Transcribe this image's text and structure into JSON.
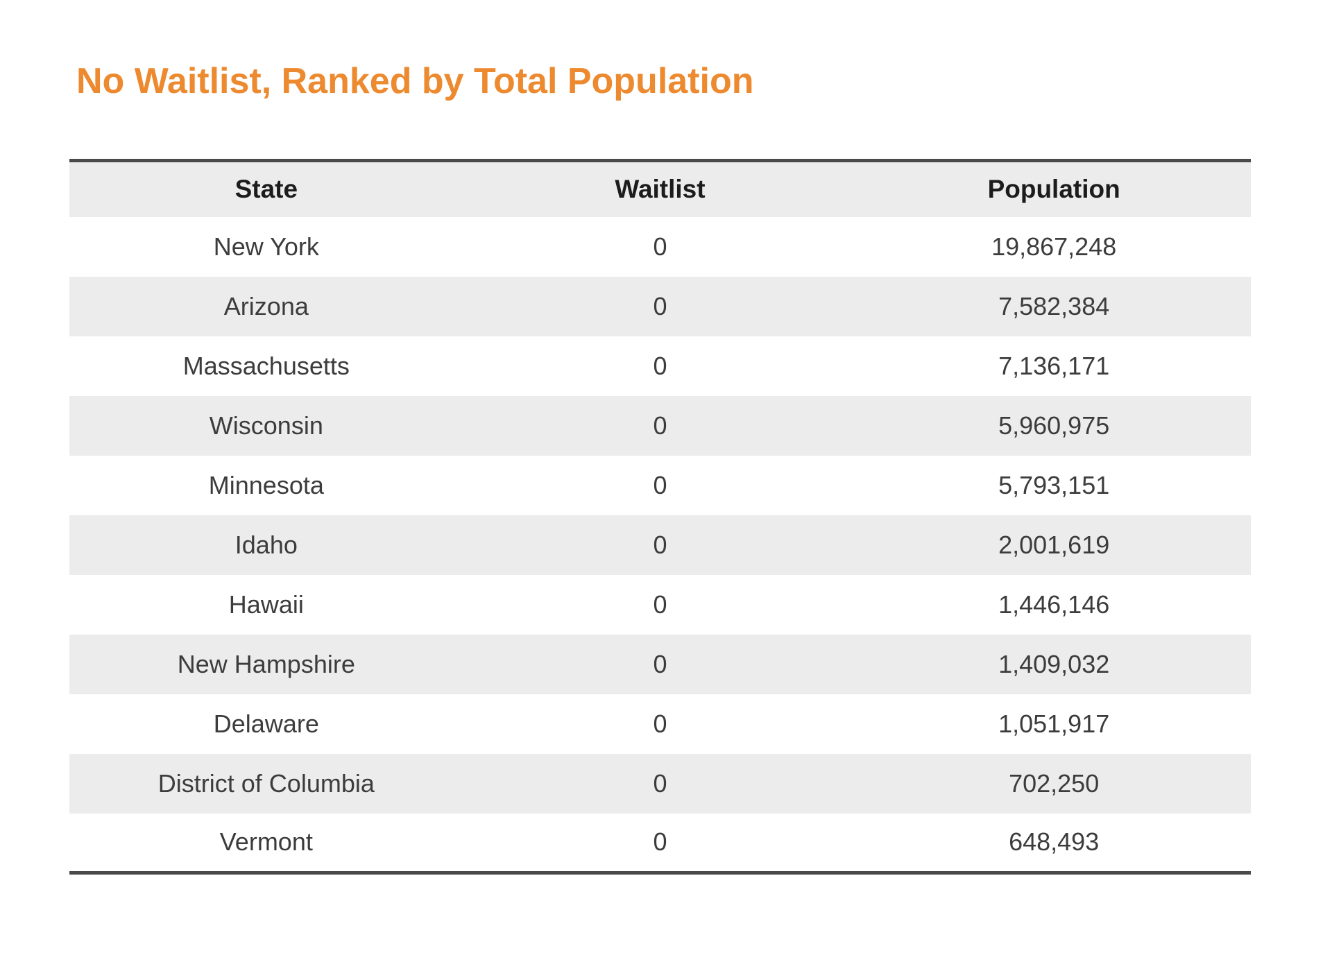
{
  "title": {
    "text": "No Waitlist, Ranked by Total Population"
  },
  "colors": {
    "title_orange": "#ED8A2F",
    "stripe_gray": "#ECECEC",
    "rule_dark": "#4A4A4A",
    "header_text": "#1C1C1C",
    "cell_text": "#3C3C3C"
  },
  "table": {
    "columns": [
      "State",
      "Waitlist",
      "Population"
    ],
    "rows": [
      {
        "state": "New York",
        "waitlist": "0",
        "population": "19,867,248"
      },
      {
        "state": "Arizona",
        "waitlist": "0",
        "population": "7,582,384"
      },
      {
        "state": "Massachusetts",
        "waitlist": "0",
        "population": "7,136,171"
      },
      {
        "state": "Wisconsin",
        "waitlist": "0",
        "population": "5,960,975"
      },
      {
        "state": "Minnesota",
        "waitlist": "0",
        "population": "5,793,151"
      },
      {
        "state": "Idaho",
        "waitlist": "0",
        "population": "2,001,619"
      },
      {
        "state": "Hawaii",
        "waitlist": "0",
        "population": "1,446,146"
      },
      {
        "state": "New Hampshire",
        "waitlist": "0",
        "population": "1,409,032"
      },
      {
        "state": "Delaware",
        "waitlist": "0",
        "population": "1,051,917"
      },
      {
        "state": "District of Columbia",
        "waitlist": "0",
        "population": "702,250"
      },
      {
        "state": "Vermont",
        "waitlist": "0",
        "population": "648,493"
      }
    ]
  },
  "chart_data": {
    "type": "table",
    "title": "No Waitlist, Ranked by Total Population",
    "columns": [
      "State",
      "Waitlist",
      "Population"
    ],
    "sort": "Population descending",
    "rows": [
      [
        "New York",
        0,
        19867248
      ],
      [
        "Arizona",
        0,
        7582384
      ],
      [
        "Massachusetts",
        0,
        7136171
      ],
      [
        "Wisconsin",
        0,
        5960975
      ],
      [
        "Minnesota",
        0,
        5793151
      ],
      [
        "Idaho",
        0,
        2001619
      ],
      [
        "Hawaii",
        0,
        1446146
      ],
      [
        "New Hampshire",
        0,
        1409032
      ],
      [
        "Delaware",
        0,
        1051917
      ],
      [
        "District of Columbia",
        0,
        702250
      ],
      [
        "Vermont",
        0,
        648493
      ]
    ]
  }
}
